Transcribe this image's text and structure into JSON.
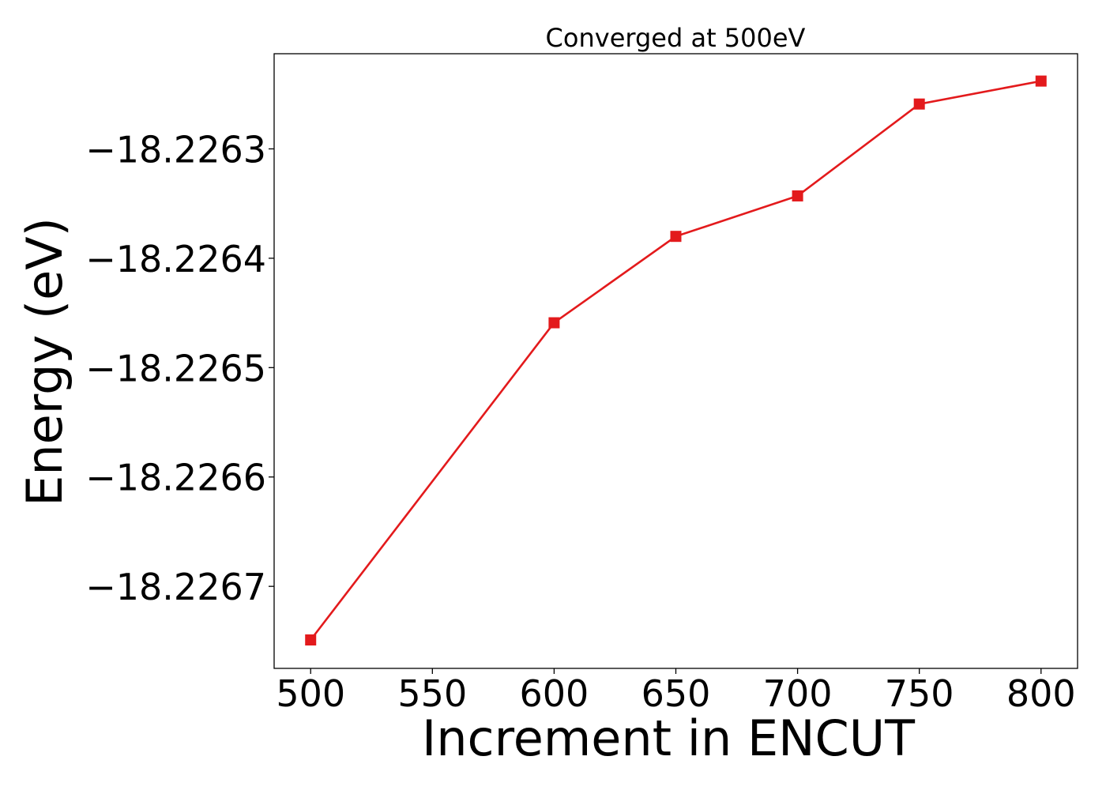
{
  "chart_data": {
    "type": "line",
    "title": "Converged at 500eV",
    "xlabel": "Increment in ENCUT",
    "ylabel": "Energy (eV)",
    "x": [
      500,
      600,
      650,
      700,
      750,
      800
    ],
    "series": [
      {
        "values": [
          -18.226749,
          -18.226459,
          -18.22638,
          -18.226343,
          -18.226259,
          -18.226238
        ],
        "color": "#e31a1c",
        "marker": "square"
      }
    ],
    "xlim": [
      485,
      815
    ],
    "ylim": [
      -18.226775,
      -18.226213
    ],
    "xticks": [
      500,
      550,
      600,
      650,
      700,
      750,
      800
    ],
    "xtick_labels": [
      "500",
      "550",
      "600",
      "650",
      "700",
      "750",
      "800"
    ],
    "yticks": [
      -18.2267,
      -18.2266,
      -18.2265,
      -18.2264,
      -18.2263
    ],
    "ytick_labels": [
      "−18.2267",
      "−18.2266",
      "−18.2265",
      "−18.2264",
      "−18.2263"
    ],
    "grid": false,
    "legend": "none"
  }
}
